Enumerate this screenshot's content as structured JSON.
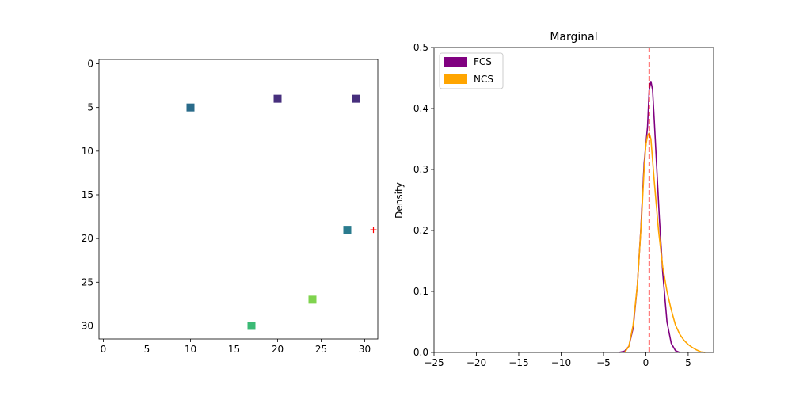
{
  "chart_data": [
    {
      "type": "scatter",
      "title": "",
      "xlabel": "",
      "ylabel": "",
      "xlim": [
        -0.5,
        31.5
      ],
      "ylim": [
        31.5,
        -0.5
      ],
      "y_inverted": true,
      "xticks": [
        0,
        5,
        10,
        15,
        20,
        25,
        30
      ],
      "yticks": [
        0,
        5,
        10,
        15,
        20,
        25,
        30
      ],
      "grid": false,
      "points": [
        {
          "x": 10,
          "y": 5,
          "color": "#2a6b8a"
        },
        {
          "x": 20,
          "y": 4,
          "color": "#472f7d"
        },
        {
          "x": 29,
          "y": 4,
          "color": "#472f7d"
        },
        {
          "x": 28,
          "y": 19,
          "color": "#2a7b8e"
        },
        {
          "x": 24,
          "y": 27,
          "color": "#7fd34e"
        },
        {
          "x": 17,
          "y": 30,
          "color": "#3bba75"
        }
      ],
      "marker_points": [
        {
          "x": 31,
          "y": 19,
          "marker": "+",
          "color": "#ff0000"
        }
      ]
    },
    {
      "type": "line",
      "title": "Marginal",
      "xlabel": "",
      "ylabel": "Density",
      "xlim": [
        -25,
        8
      ],
      "ylim": [
        0,
        0.5
      ],
      "xticks": [
        -25,
        -20,
        -15,
        -10,
        -5,
        0,
        5
      ],
      "xtick_labels": [
        "−25",
        "−20",
        "−15",
        "−10",
        "−5",
        "0",
        "5"
      ],
      "yticks": [
        0.0,
        0.1,
        0.2,
        0.3,
        0.4,
        0.5
      ],
      "ytick_labels": [
        "0.0",
        "0.1",
        "0.2",
        "0.3",
        "0.4",
        "0.5"
      ],
      "grid": false,
      "legend_position": "top-left",
      "vline": {
        "x": 0.4,
        "color": "#ff0000",
        "style": "dashed"
      },
      "series": [
        {
          "name": "FCS",
          "color": "#800080",
          "x": [
            -3.2,
            -2.5,
            -2.0,
            -1.5,
            -1.0,
            -0.6,
            -0.2,
            0.0,
            0.2,
            0.4,
            0.6,
            0.8,
            1.0,
            1.3,
            1.6,
            2.0,
            2.5,
            3.0,
            3.5,
            4.0
          ],
          "y": [
            0.0,
            0.002,
            0.01,
            0.04,
            0.11,
            0.2,
            0.31,
            0.34,
            0.37,
            0.43,
            0.445,
            0.43,
            0.38,
            0.3,
            0.22,
            0.13,
            0.05,
            0.015,
            0.003,
            0.0
          ]
        },
        {
          "name": "NCS",
          "color": "#ffa500",
          "x": [
            -2.5,
            -2.0,
            -1.5,
            -1.0,
            -0.5,
            -0.2,
            0.0,
            0.2,
            0.4,
            0.6,
            1.0,
            1.5,
            2.0,
            2.5,
            3.0,
            3.5,
            4.0,
            4.5,
            5.0,
            5.5,
            6.0,
            6.5,
            7.0
          ],
          "y": [
            0.0,
            0.01,
            0.045,
            0.11,
            0.22,
            0.3,
            0.34,
            0.355,
            0.36,
            0.35,
            0.28,
            0.2,
            0.14,
            0.1,
            0.07,
            0.045,
            0.03,
            0.02,
            0.013,
            0.008,
            0.004,
            0.001,
            0.0
          ]
        }
      ]
    }
  ]
}
